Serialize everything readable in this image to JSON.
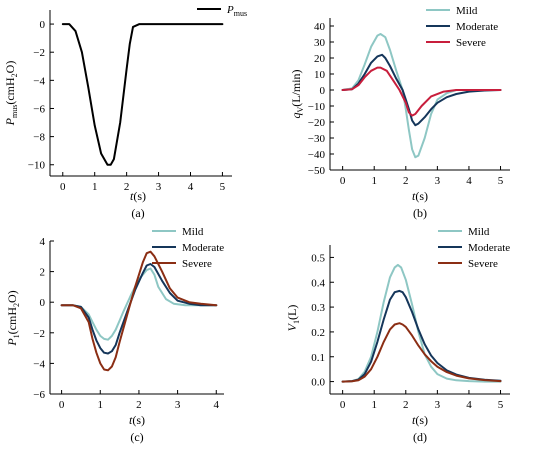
{
  "chart_data": [
    {
      "type": "line",
      "panel_label": "(a)",
      "ylabel": "P_mus(cmH2O)",
      "xlabel": "t(s)",
      "xlim": [
        -0.4,
        5.3
      ],
      "ylim": [
        -10.8,
        1.0
      ],
      "xticks": [
        0,
        1,
        2,
        3,
        4,
        5
      ],
      "yticks": [
        0,
        -2,
        -4,
        -6,
        -8,
        -10
      ],
      "legend_position": "top-right",
      "series": [
        {
          "name": "P_mus",
          "color": "#000000",
          "x": [
            0,
            0.2,
            0.4,
            0.6,
            0.8,
            1.0,
            1.2,
            1.4,
            1.5,
            1.6,
            1.8,
            2.0,
            2.1,
            2.2,
            2.4,
            3,
            4,
            5
          ],
          "y": [
            0,
            0,
            -0.5,
            -2.0,
            -4.5,
            -7.2,
            -9.2,
            -10.0,
            -10.0,
            -9.6,
            -7.0,
            -3.2,
            -1.4,
            -0.2,
            0,
            0,
            0,
            0
          ]
        }
      ]
    },
    {
      "type": "line",
      "panel_label": "(b)",
      "ylabel": "q_V(L/min)",
      "xlabel": "t(s)",
      "xlim": [
        -0.4,
        5.3
      ],
      "ylim": [
        -50,
        45
      ],
      "xticks": [
        0,
        1,
        2,
        3,
        4,
        5
      ],
      "yticks": [
        40,
        30,
        20,
        10,
        0,
        -10,
        -20,
        -30,
        -40,
        -50
      ],
      "legend_position": "top-right",
      "series": [
        {
          "name": "Mild",
          "color": "#8ec7c4",
          "x": [
            0,
            0.3,
            0.5,
            0.7,
            0.9,
            1.1,
            1.2,
            1.35,
            1.5,
            1.7,
            1.9,
            2.0,
            2.1,
            2.2,
            2.3,
            2.4,
            2.6,
            2.8,
            3.0,
            3.3,
            3.6,
            4,
            4.5,
            5
          ],
          "y": [
            0,
            1,
            6,
            16,
            27,
            34,
            35,
            33,
            25,
            12,
            0,
            -12,
            -25,
            -37,
            -42,
            -41,
            -30,
            -15,
            -6,
            -2,
            0,
            0,
            0,
            0
          ]
        },
        {
          "name": "Moderate",
          "color": "#15365a",
          "x": [
            0,
            0.3,
            0.5,
            0.7,
            0.9,
            1.1,
            1.25,
            1.35,
            1.5,
            1.7,
            1.9,
            2.0,
            2.1,
            2.2,
            2.3,
            2.4,
            2.6,
            2.8,
            3.0,
            3.3,
            3.6,
            4,
            4.5,
            5
          ],
          "y": [
            0,
            0.5,
            4,
            10,
            17,
            21,
            22,
            20,
            15,
            7,
            0,
            -6,
            -12,
            -19,
            -22,
            -21,
            -17,
            -12,
            -8,
            -4.5,
            -2.5,
            -1,
            -0.3,
            0
          ]
        },
        {
          "name": "Severe",
          "color": "#c81e3c",
          "x": [
            0,
            0.3,
            0.5,
            0.7,
            0.9,
            1.1,
            1.2,
            1.4,
            1.6,
            1.8,
            2.0,
            2.1,
            2.2,
            2.3,
            2.5,
            2.8,
            3.2,
            3.6,
            4,
            4.5,
            5
          ],
          "y": [
            0,
            0.5,
            3,
            8,
            12,
            14,
            14,
            12,
            6,
            0,
            -8,
            -14,
            -16,
            -15,
            -10,
            -4,
            -1,
            0,
            0,
            0,
            0
          ]
        }
      ]
    },
    {
      "type": "line",
      "panel_label": "(c)",
      "ylabel": "P_1(cmH2O)",
      "xlabel": "t(s)",
      "xlim": [
        -0.3,
        4.2
      ],
      "ylim": [
        -6,
        4
      ],
      "xticks": [
        0,
        1,
        2,
        3,
        4
      ],
      "yticks": [
        4,
        2,
        0,
        -2,
        -4,
        -6
      ],
      "legend_position": "top-right",
      "series": [
        {
          "name": "Mild",
          "color": "#8ec7c4",
          "x": [
            0,
            0.3,
            0.5,
            0.7,
            0.8,
            0.9,
            1.0,
            1.1,
            1.2,
            1.3,
            1.4,
            1.5,
            1.6,
            1.8,
            2.0,
            2.2,
            2.3,
            2.4,
            2.5,
            2.7,
            2.9,
            3.2,
            3.6,
            4.0
          ],
          "y": [
            -0.2,
            -0.2,
            -0.3,
            -0.8,
            -1.3,
            -1.8,
            -2.2,
            -2.4,
            -2.45,
            -2.2,
            -1.8,
            -1.2,
            -0.6,
            0.5,
            1.5,
            2.1,
            2.2,
            1.8,
            1.0,
            0.2,
            -0.1,
            -0.2,
            -0.2,
            -0.2
          ]
        },
        {
          "name": "Moderate",
          "color": "#15365a",
          "x": [
            0,
            0.3,
            0.5,
            0.7,
            0.8,
            0.9,
            1.0,
            1.1,
            1.2,
            1.3,
            1.4,
            1.5,
            1.7,
            1.9,
            2.1,
            2.2,
            2.3,
            2.4,
            2.6,
            2.8,
            3.0,
            3.3,
            3.6,
            4.0
          ],
          "y": [
            -0.2,
            -0.2,
            -0.3,
            -1.0,
            -1.8,
            -2.5,
            -3.0,
            -3.3,
            -3.35,
            -3.2,
            -2.8,
            -2.0,
            -0.6,
            0.8,
            1.9,
            2.4,
            2.5,
            2.3,
            1.4,
            0.6,
            0.1,
            -0.1,
            -0.2,
            -0.2
          ]
        },
        {
          "name": "Severe",
          "color": "#8b2e14",
          "x": [
            0,
            0.3,
            0.5,
            0.7,
            0.8,
            0.9,
            1.0,
            1.1,
            1.2,
            1.3,
            1.4,
            1.5,
            1.7,
            1.9,
            2.1,
            2.2,
            2.3,
            2.4,
            2.6,
            2.8,
            3.0,
            3.3,
            3.6,
            4.0
          ],
          "y": [
            -0.2,
            -0.2,
            -0.4,
            -1.3,
            -2.4,
            -3.3,
            -4.0,
            -4.4,
            -4.45,
            -4.2,
            -3.6,
            -2.6,
            -0.8,
            1.0,
            2.6,
            3.2,
            3.3,
            3.0,
            2.0,
            0.9,
            0.3,
            0.0,
            -0.1,
            -0.2
          ]
        }
      ]
    },
    {
      "type": "line",
      "panel_label": "(d)",
      "ylabel": "V_1(L)",
      "xlabel": "t(s)",
      "xlim": [
        -0.4,
        5.3
      ],
      "ylim": [
        -0.05,
        0.55
      ],
      "xticks": [
        0,
        1,
        2,
        3,
        4,
        5
      ],
      "yticks": [
        0.5,
        0.4,
        0.3,
        0.2,
        0.1,
        0.0
      ],
      "legend_position": "top-right",
      "series": [
        {
          "name": "Mild",
          "color": "#8ec7c4",
          "x": [
            0,
            0.3,
            0.5,
            0.7,
            0.9,
            1.1,
            1.3,
            1.5,
            1.65,
            1.75,
            1.85,
            2.0,
            2.2,
            2.4,
            2.6,
            2.8,
            3.0,
            3.3,
            3.6,
            4.0,
            4.5,
            5.0
          ],
          "y": [
            0,
            0.002,
            0.01,
            0.04,
            0.1,
            0.2,
            0.32,
            0.42,
            0.46,
            0.47,
            0.46,
            0.41,
            0.31,
            0.2,
            0.11,
            0.06,
            0.03,
            0.012,
            0.005,
            0.002,
            0,
            0
          ]
        },
        {
          "name": "Moderate",
          "color": "#15365a",
          "x": [
            0,
            0.3,
            0.5,
            0.7,
            0.9,
            1.1,
            1.3,
            1.5,
            1.65,
            1.8,
            1.9,
            2.0,
            2.2,
            2.4,
            2.6,
            2.8,
            3.0,
            3.3,
            3.6,
            4.0,
            4.5,
            5.0
          ],
          "y": [
            0,
            0.002,
            0.008,
            0.03,
            0.08,
            0.16,
            0.25,
            0.33,
            0.36,
            0.365,
            0.36,
            0.34,
            0.28,
            0.21,
            0.15,
            0.105,
            0.075,
            0.045,
            0.028,
            0.015,
            0.007,
            0.003
          ]
        },
        {
          "name": "Severe",
          "color": "#8b2e14",
          "x": [
            0,
            0.3,
            0.5,
            0.7,
            0.9,
            1.1,
            1.3,
            1.5,
            1.65,
            1.8,
            1.9,
            2.0,
            2.2,
            2.4,
            2.6,
            2.8,
            3.0,
            3.3,
            3.6,
            4.0,
            4.5,
            5.0
          ],
          "y": [
            0,
            0.001,
            0.005,
            0.02,
            0.05,
            0.1,
            0.16,
            0.21,
            0.23,
            0.235,
            0.23,
            0.22,
            0.185,
            0.145,
            0.11,
            0.082,
            0.06,
            0.038,
            0.024,
            0.013,
            0.006,
            0.002
          ]
        }
      ]
    }
  ]
}
